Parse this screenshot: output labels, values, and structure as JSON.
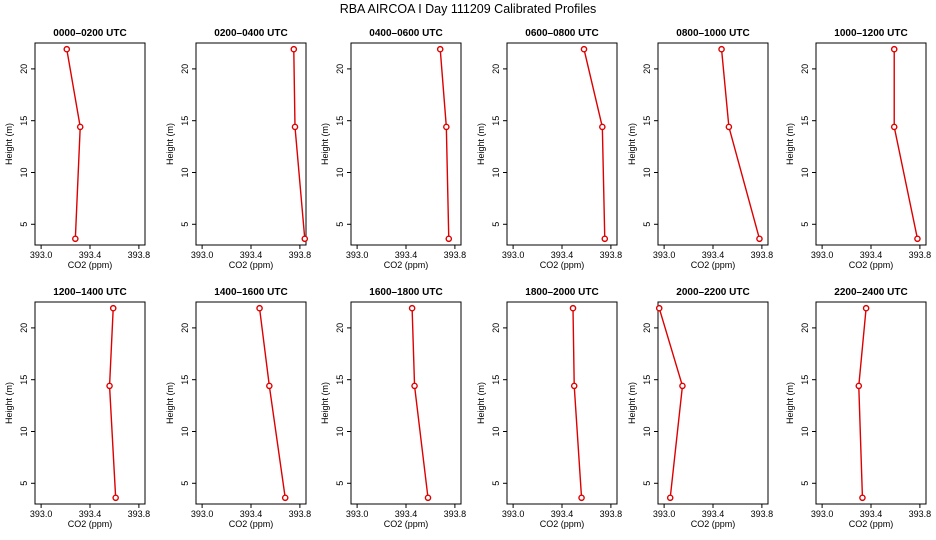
{
  "title": "RBA AIRCOA I  Day 111209  Calibrated Profiles",
  "chart_data": [
    {
      "type": "line",
      "title": "0000–0200 UTC",
      "xlabel": "CO2 (ppm)",
      "ylabel": "Height (m)",
      "xlim": [
        392.95,
        393.85
      ],
      "ylim": [
        3,
        22.5
      ],
      "xticks": [
        "393.0",
        "393.4",
        "393.8"
      ],
      "yticks": [
        "5",
        "10",
        "15",
        "20"
      ],
      "x": [
        393.21,
        393.32,
        393.28
      ],
      "y": [
        21.9,
        14.4,
        3.6
      ]
    },
    {
      "type": "line",
      "title": "0200–0400 UTC",
      "xlabel": "CO2 (ppm)",
      "ylabel": "Height (m)",
      "xlim": [
        392.95,
        393.85
      ],
      "ylim": [
        3,
        22.5
      ],
      "xticks": [
        "393.0",
        "393.4",
        "393.8"
      ],
      "yticks": [
        "5",
        "10",
        "15",
        "20"
      ],
      "x": [
        393.75,
        393.76,
        393.84
      ],
      "y": [
        21.9,
        14.4,
        3.6
      ]
    },
    {
      "type": "line",
      "title": "0400–0600 UTC",
      "xlabel": "CO2 (ppm)",
      "ylabel": "Height (m)",
      "xlim": [
        392.95,
        393.85
      ],
      "ylim": [
        3,
        22.5
      ],
      "xticks": [
        "393.0",
        "393.4",
        "393.8"
      ],
      "yticks": [
        "5",
        "10",
        "15",
        "20"
      ],
      "x": [
        393.68,
        393.73,
        393.75
      ],
      "y": [
        21.9,
        14.4,
        3.6
      ]
    },
    {
      "type": "line",
      "title": "0600–0800 UTC",
      "xlabel": "CO2 (ppm)",
      "ylabel": "Height (m)",
      "xlim": [
        392.95,
        393.85
      ],
      "ylim": [
        3,
        22.5
      ],
      "xticks": [
        "393.0",
        "393.4",
        "393.8"
      ],
      "yticks": [
        "5",
        "10",
        "15",
        "20"
      ],
      "x": [
        393.58,
        393.73,
        393.75
      ],
      "y": [
        21.9,
        14.4,
        3.6
      ]
    },
    {
      "type": "line",
      "title": "0800–1000 UTC",
      "xlabel": "CO2 (ppm)",
      "ylabel": "Height (m)",
      "xlim": [
        392.95,
        393.85
      ],
      "ylim": [
        3,
        22.5
      ],
      "xticks": [
        "393.0",
        "393.4",
        "393.8"
      ],
      "yticks": [
        "5",
        "10",
        "15",
        "20"
      ],
      "x": [
        393.47,
        393.53,
        393.78
      ],
      "y": [
        21.9,
        14.4,
        3.6
      ]
    },
    {
      "type": "line",
      "title": "1000–1200 UTC",
      "xlabel": "CO2 (ppm)",
      "ylabel": "Height (m)",
      "xlim": [
        392.95,
        393.85
      ],
      "ylim": [
        3,
        22.5
      ],
      "xticks": [
        "393.0",
        "393.4",
        "393.8"
      ],
      "yticks": [
        "5",
        "10",
        "15",
        "20"
      ],
      "x": [
        393.59,
        393.59,
        393.78
      ],
      "y": [
        21.9,
        14.4,
        3.6
      ]
    },
    {
      "type": "line",
      "title": "1200–1400 UTC",
      "xlabel": "CO2 (ppm)",
      "ylabel": "Height (m)",
      "xlim": [
        392.95,
        393.85
      ],
      "ylim": [
        3,
        22.5
      ],
      "xticks": [
        "393.0",
        "393.4",
        "393.8"
      ],
      "yticks": [
        "5",
        "10",
        "15",
        "20"
      ],
      "x": [
        393.59,
        393.56,
        393.61
      ],
      "y": [
        21.9,
        14.4,
        3.6
      ]
    },
    {
      "type": "line",
      "title": "1400–1600 UTC",
      "xlabel": "CO2 (ppm)",
      "ylabel": "Height (m)",
      "xlim": [
        392.95,
        393.85
      ],
      "ylim": [
        3,
        22.5
      ],
      "xticks": [
        "393.0",
        "393.4",
        "393.8"
      ],
      "yticks": [
        "5",
        "10",
        "15",
        "20"
      ],
      "x": [
        393.47,
        393.55,
        393.68
      ],
      "y": [
        21.9,
        14.4,
        3.6
      ]
    },
    {
      "type": "line",
      "title": "1600–1800 UTC",
      "xlabel": "CO2 (ppm)",
      "ylabel": "Height (m)",
      "xlim": [
        392.95,
        393.85
      ],
      "ylim": [
        3,
        22.5
      ],
      "xticks": [
        "393.0",
        "393.4",
        "393.8"
      ],
      "yticks": [
        "5",
        "10",
        "15",
        "20"
      ],
      "x": [
        393.45,
        393.47,
        393.58
      ],
      "y": [
        21.9,
        14.4,
        3.6
      ]
    },
    {
      "type": "line",
      "title": "1800–2000 UTC",
      "xlabel": "CO2 (ppm)",
      "ylabel": "Height (m)",
      "xlim": [
        392.95,
        393.85
      ],
      "ylim": [
        3,
        22.5
      ],
      "xticks": [
        "393.0",
        "393.4",
        "393.8"
      ],
      "yticks": [
        "5",
        "10",
        "15",
        "20"
      ],
      "x": [
        393.49,
        393.5,
        393.56
      ],
      "y": [
        21.9,
        14.4,
        3.6
      ]
    },
    {
      "type": "line",
      "title": "2000–2200 UTC",
      "xlabel": "CO2 (ppm)",
      "ylabel": "Height (m)",
      "xlim": [
        392.95,
        393.85
      ],
      "ylim": [
        3,
        22.5
      ],
      "xticks": [
        "393.0",
        "393.4",
        "393.8"
      ],
      "yticks": [
        "5",
        "10",
        "15",
        "20"
      ],
      "x": [
        392.96,
        393.15,
        393.05
      ],
      "y": [
        21.9,
        14.4,
        3.6
      ]
    },
    {
      "type": "line",
      "title": "2200–2400 UTC",
      "xlabel": "CO2 (ppm)",
      "ylabel": "Height (m)",
      "xlim": [
        392.95,
        393.85
      ],
      "ylim": [
        3,
        22.5
      ],
      "xticks": [
        "393.0",
        "393.4",
        "393.8"
      ],
      "yticks": [
        "5",
        "10",
        "15",
        "20"
      ],
      "x": [
        393.36,
        393.3,
        393.33
      ],
      "y": [
        21.9,
        14.4,
        3.6
      ]
    }
  ],
  "colors": {
    "series": "#dd0000",
    "axis": "#000000",
    "background": "#ffffff"
  }
}
